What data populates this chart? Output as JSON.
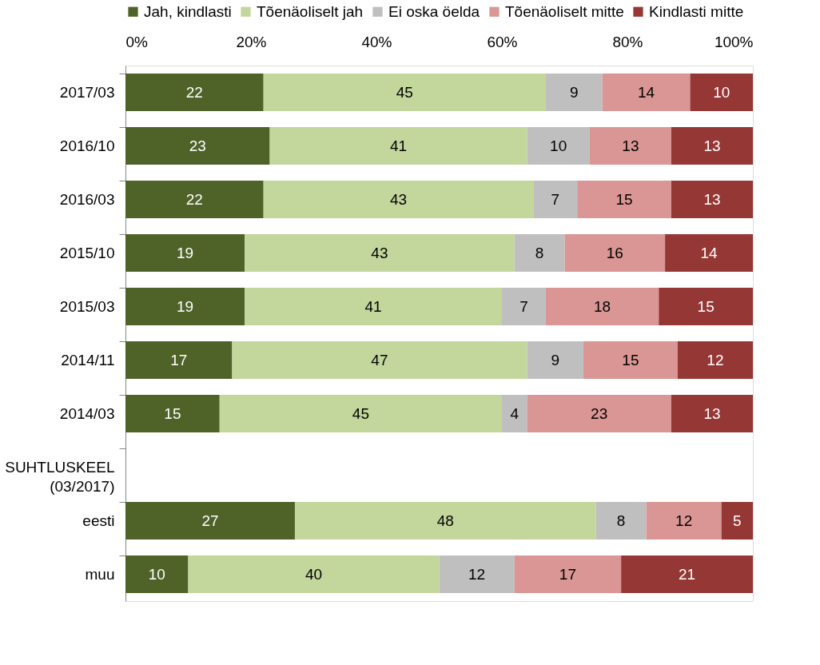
{
  "chart_data": {
    "type": "bar",
    "orientation": "horizontal",
    "stacked": true,
    "data_labels": true,
    "legend": "top",
    "grid": false,
    "categories": [
      "2017/03",
      "2016/10",
      "2016/03",
      "2015/10",
      "2015/03",
      "2014/11",
      "2014/03",
      "SUHTLUSKEEL (03/2017)",
      "eesti",
      "muu"
    ],
    "xlim": [
      0,
      100
    ],
    "xticks": [
      {
        "value": 0,
        "label": "0%"
      },
      {
        "value": 20,
        "label": "20%"
      },
      {
        "value": 40,
        "label": "40%"
      },
      {
        "value": 60,
        "label": "60%"
      },
      {
        "value": 80,
        "label": "80%"
      },
      {
        "value": 100,
        "label": "100%"
      }
    ],
    "series": [
      {
        "name": "Jah, kindlasti",
        "color": "#4f6228",
        "values": [
          22,
          23,
          22,
          19,
          19,
          17,
          15,
          null,
          27,
          10
        ]
      },
      {
        "name": "Tõenäoliselt jah",
        "color": "#c3d69b",
        "values": [
          45,
          41,
          43,
          43,
          41,
          47,
          45,
          null,
          48,
          40
        ]
      },
      {
        "name": "Ei oska öelda",
        "color": "#bfbfbf",
        "values": [
          9,
          10,
          7,
          8,
          7,
          9,
          4,
          null,
          8,
          12
        ]
      },
      {
        "name": "Tõenäoliselt mitte",
        "color": "#d99694",
        "values": [
          14,
          13,
          15,
          16,
          18,
          15,
          23,
          null,
          12,
          17
        ]
      },
      {
        "name": "Kindlasti mitte",
        "color": "#953735",
        "values": [
          10,
          13,
          13,
          14,
          15,
          12,
          13,
          null,
          5,
          21
        ]
      }
    ]
  }
}
